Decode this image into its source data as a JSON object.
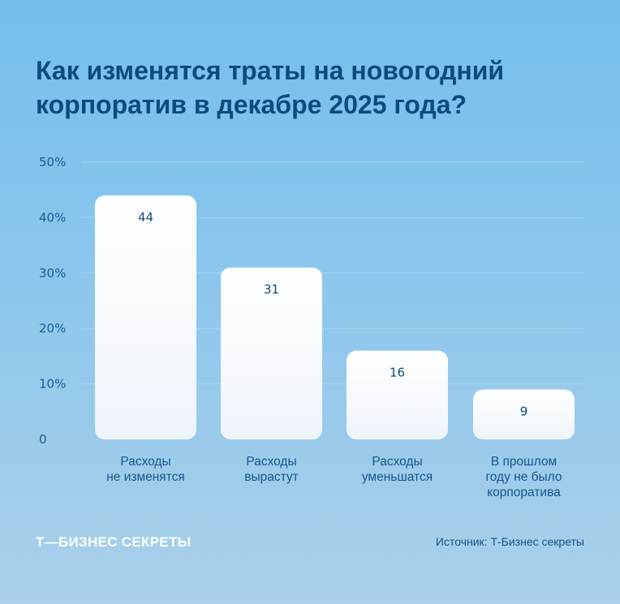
{
  "chart_data": {
    "type": "bar",
    "title": "Как изменятся траты на новогодний корпоратив в декабре 2025 года?",
    "categories": [
      [
        "Расходы",
        "не изменятся"
      ],
      [
        "Расходы",
        "вырастут"
      ],
      [
        "Расходы",
        "уменьшатся"
      ],
      [
        "В прошлом",
        "году не было",
        "корпоратива"
      ]
    ],
    "values": [
      44,
      31,
      16,
      9
    ],
    "yticks": [
      "0",
      "10%",
      "20%",
      "30%",
      "40%",
      "50%"
    ],
    "ylim": [
      0,
      50
    ],
    "grid": true,
    "bar_color": "#ffffff",
    "text_color": "#0c4a7e"
  },
  "footer": {
    "logo": "Т—БИЗНЕС СЕКРЕТЫ",
    "source": "Источник: Т-Бизнес секреты"
  }
}
